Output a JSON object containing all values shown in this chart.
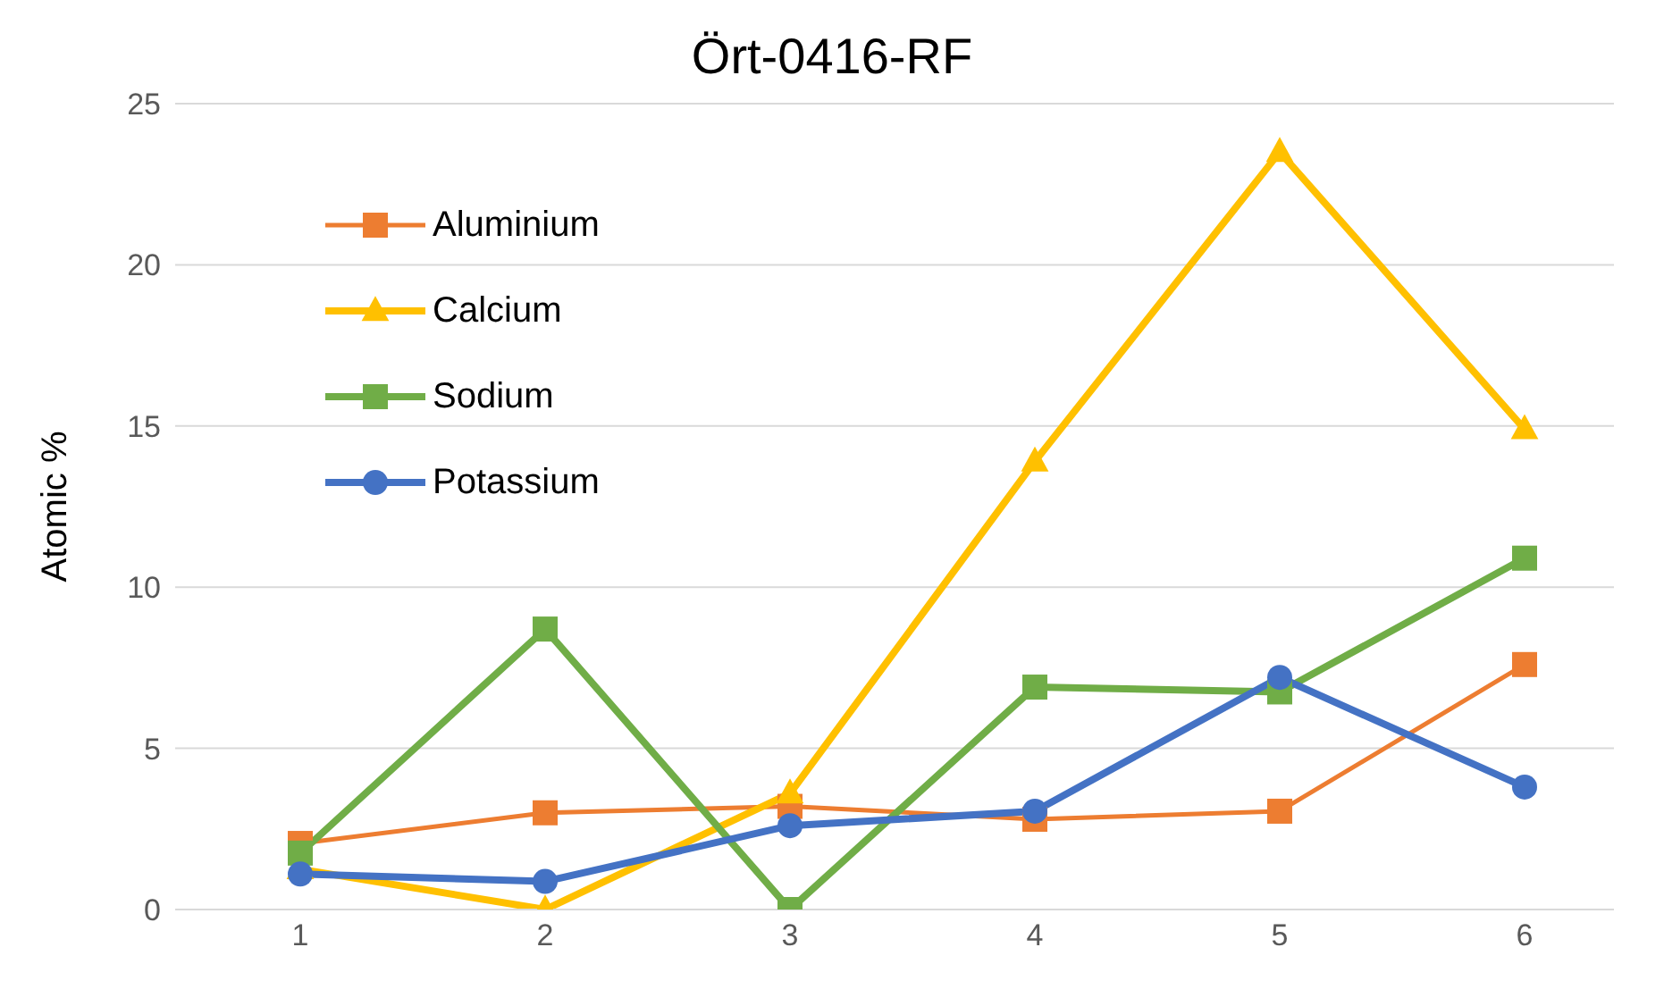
{
  "chart_data": {
    "type": "line",
    "title": "Ört-0416-RF",
    "ylabel": "Atomic %",
    "categories": [
      "1",
      "2",
      "3",
      "4",
      "5",
      "6"
    ],
    "series": [
      {
        "name": "Aluminium",
        "color": "#ed7d31",
        "marker": "square",
        "values": [
          2.05,
          3.0,
          3.2,
          2.8,
          3.05,
          7.6
        ]
      },
      {
        "name": "Calcium",
        "color": "#ffc000",
        "marker": "triangle",
        "values": [
          1.25,
          0,
          3.6,
          13.9,
          23.5,
          14.9
        ]
      },
      {
        "name": "Sodium",
        "color": "#70ad47",
        "marker": "square",
        "values": [
          1.75,
          8.7,
          0,
          6.9,
          6.75,
          10.9
        ]
      },
      {
        "name": "Potassium",
        "color": "#4472c4",
        "marker": "circle",
        "values": [
          1.1,
          0.87,
          2.6,
          3.05,
          7.2,
          3.8
        ]
      }
    ],
    "ylim": [
      0,
      25
    ],
    "yticks": [
      0,
      5,
      10,
      15,
      20,
      25
    ],
    "grid": "y",
    "legend": "top left",
    "line_style": "solid"
  }
}
